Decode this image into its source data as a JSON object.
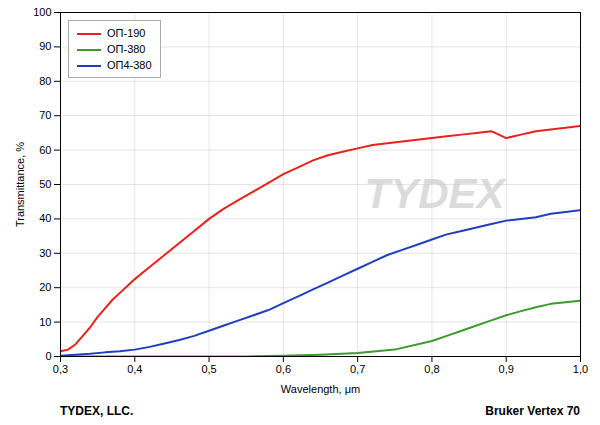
{
  "chart_data": {
    "type": "line",
    "title": "",
    "xlabel": "Wavelength, μm",
    "ylabel": "Transmittance, %",
    "xlim": [
      0.3,
      1.0
    ],
    "ylim": [
      0,
      100
    ],
    "xticks": [
      {
        "value": 0.3,
        "label": "0,3"
      },
      {
        "value": 0.4,
        "label": "0,4"
      },
      {
        "value": 0.5,
        "label": "0,5"
      },
      {
        "value": 0.6,
        "label": "0,6"
      },
      {
        "value": 0.7,
        "label": "0,7"
      },
      {
        "value": 0.8,
        "label": "0,8"
      },
      {
        "value": 0.9,
        "label": "0,9"
      },
      {
        "value": 1.0,
        "label": "1,0"
      }
    ],
    "yticks": [
      0,
      10,
      20,
      30,
      40,
      50,
      60,
      70,
      80,
      90,
      100
    ],
    "grid": true,
    "legend": "upper left",
    "annotations": [
      "TYDEX",
      "TYDEX, LLC.",
      "Bruker Vertex 70"
    ],
    "series": [
      {
        "name": "ОП-190",
        "color": "#e8221a",
        "x": [
          0.3,
          0.31,
          0.32,
          0.33,
          0.34,
          0.35,
          0.36,
          0.37,
          0.38,
          0.39,
          0.4,
          0.42,
          0.44,
          0.46,
          0.48,
          0.5,
          0.52,
          0.54,
          0.56,
          0.58,
          0.6,
          0.62,
          0.64,
          0.66,
          0.68,
          0.7,
          0.72,
          0.74,
          0.76,
          0.78,
          0.8,
          0.82,
          0.84,
          0.86,
          0.88,
          0.9,
          0.92,
          0.94,
          0.96,
          0.98,
          1.0
        ],
        "values": [
          1.5,
          2.0,
          3.5,
          6.0,
          8.5,
          11.5,
          14.0,
          16.5,
          18.5,
          20.5,
          22.5,
          26.0,
          29.5,
          33.0,
          36.5,
          40.0,
          43.0,
          45.5,
          48.0,
          50.5,
          53.0,
          55.0,
          57.0,
          58.5,
          59.5,
          60.5,
          61.5,
          62.0,
          62.5,
          63.0,
          63.5,
          64.0,
          64.5,
          65.0,
          65.5,
          63.5,
          64.5,
          65.5,
          66.0,
          66.5,
          67.0
        ]
      },
      {
        "name": "ОП-380",
        "color": "#3a9c2a",
        "x": [
          0.3,
          0.35,
          0.4,
          0.45,
          0.5,
          0.55,
          0.6,
          0.65,
          0.7,
          0.75,
          0.8,
          0.82,
          0.84,
          0.86,
          0.88,
          0.9,
          0.92,
          0.94,
          0.96,
          0.98,
          1.0
        ],
        "values": [
          0.0,
          0.0,
          0.0,
          0.0,
          0.0,
          0.0,
          0.2,
          0.5,
          1.0,
          2.0,
          4.5,
          6.0,
          7.5,
          9.0,
          10.5,
          12.0,
          13.2,
          14.3,
          15.3,
          15.8,
          16.2
        ]
      },
      {
        "name": "ОП4-380",
        "color": "#1f3fbf",
        "x": [
          0.3,
          0.32,
          0.34,
          0.36,
          0.38,
          0.4,
          0.42,
          0.44,
          0.46,
          0.48,
          0.5,
          0.52,
          0.54,
          0.56,
          0.58,
          0.6,
          0.62,
          0.64,
          0.66,
          0.68,
          0.7,
          0.72,
          0.74,
          0.76,
          0.78,
          0.8,
          0.82,
          0.84,
          0.86,
          0.88,
          0.9,
          0.92,
          0.94,
          0.96,
          0.98,
          1.0
        ],
        "values": [
          0.2,
          0.5,
          0.8,
          1.2,
          1.5,
          2.0,
          2.8,
          3.8,
          4.8,
          6.0,
          7.5,
          9.0,
          10.5,
          12.0,
          13.5,
          15.5,
          17.5,
          19.5,
          21.5,
          23.5,
          25.5,
          27.5,
          29.5,
          31.0,
          32.5,
          34.0,
          35.5,
          36.5,
          37.5,
          38.5,
          39.5,
          40.0,
          40.5,
          41.5,
          42.0,
          42.5
        ]
      }
    ]
  }
}
